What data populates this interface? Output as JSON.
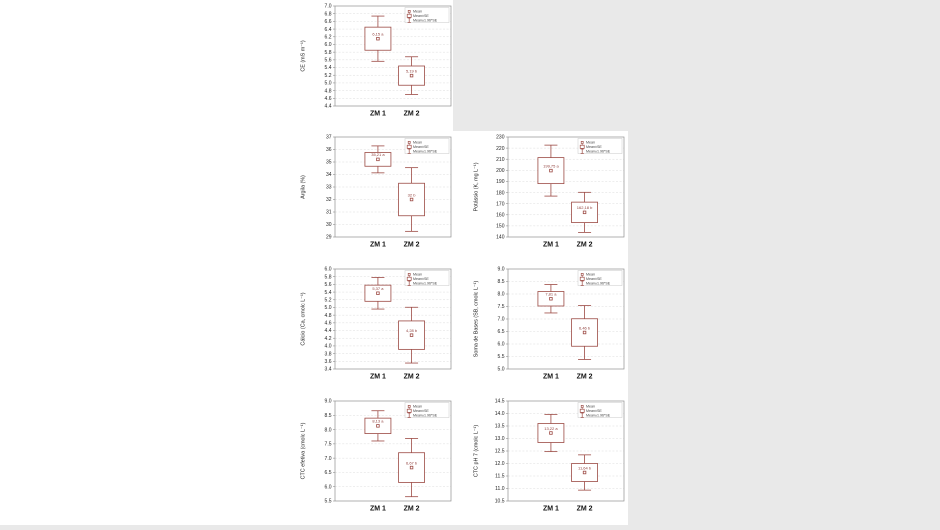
{
  "page": {
    "background": "#e9e9e9",
    "document_background": "#ffffff"
  },
  "style": {
    "box_color": "#9c4a44",
    "label_color": "#8f3e3a",
    "grid_color": "#dcdcdc",
    "axis_color": "#8f8f8f",
    "text_color": "#222222",
    "legend_border": "#c8c8c8",
    "legend_text": "#444444"
  },
  "legend": {
    "items": [
      {
        "label": "Mean",
        "marker": "mean-square"
      },
      {
        "label": "Mean±SE",
        "marker": "se-box"
      },
      {
        "label": "Mean±1.96*SE",
        "marker": "whisker"
      }
    ],
    "position": "top-right"
  },
  "chart_data": [
    {
      "id": "ce",
      "type": "box",
      "title": "",
      "xlabel": "",
      "ylabel": "CE (mS m⁻¹)",
      "ylim": [
        4.4,
        7.0
      ],
      "ystep": 0.2,
      "ydecimals": 1,
      "grid": true,
      "whisker_factor": 1.96,
      "categories": [
        "ZM 1",
        "ZM 2"
      ],
      "groups": [
        {
          "category": "ZM 1",
          "mean": 6.15,
          "se": 0.3,
          "label": "6,15 a"
        },
        {
          "category": "ZM 2",
          "mean": 5.19,
          "se": 0.25,
          "label": "5,19 b"
        }
      ]
    },
    {
      "id": "argila",
      "type": "box",
      "title": "",
      "xlabel": "",
      "ylabel": "Argila (%)",
      "ylim": [
        29,
        37
      ],
      "ystep": 1,
      "ydecimals": 0,
      "grid": true,
      "whisker_factor": 1.96,
      "categories": [
        "ZM 1",
        "ZM 2"
      ],
      "groups": [
        {
          "category": "ZM 1",
          "mean": 35.21,
          "se": 0.55,
          "label": "35,21 a"
        },
        {
          "category": "ZM 2",
          "mean": 32.0,
          "se": 1.3,
          "label": "32 b"
        }
      ]
    },
    {
      "id": "potassio",
      "type": "box",
      "title": "",
      "xlabel": "",
      "ylabel": "Potássio (K, mg L⁻¹)",
      "ylim": [
        140,
        230
      ],
      "ystep": 10,
      "ydecimals": 0,
      "grid": true,
      "whisker_factor": 1.96,
      "categories": [
        "ZM 1",
        "ZM 2"
      ],
      "groups": [
        {
          "category": "ZM 1",
          "mean": 199.75,
          "se": 11.7,
          "label": "199,75 a"
        },
        {
          "category": "ZM 2",
          "mean": 162.18,
          "se": 9.2,
          "label": "162,18 b"
        }
      ]
    },
    {
      "id": "calcio",
      "type": "box",
      "title": "",
      "xlabel": "",
      "ylabel": "Cálcio (Ca, cmolc L⁻¹)",
      "ylim": [
        3.4,
        6.0
      ],
      "ystep": 0.2,
      "ydecimals": 1,
      "grid": true,
      "whisker_factor": 1.96,
      "categories": [
        "ZM 1",
        "ZM 2"
      ],
      "groups": [
        {
          "category": "ZM 1",
          "mean": 5.37,
          "se": 0.21,
          "label": "5,37 a"
        },
        {
          "category": "ZM 2",
          "mean": 4.28,
          "se": 0.37,
          "label": "4,28 b"
        }
      ]
    },
    {
      "id": "soma-de-bases",
      "type": "box",
      "title": "",
      "xlabel": "",
      "ylabel": "Soma de Bases (SB, cmolc L⁻¹)",
      "ylim": [
        5.0,
        9.0
      ],
      "ystep": 0.5,
      "ydecimals": 1,
      "grid": true,
      "whisker_factor": 1.96,
      "categories": [
        "ZM 1",
        "ZM 2"
      ],
      "groups": [
        {
          "category": "ZM 1",
          "mean": 7.81,
          "se": 0.29,
          "label": "7,81 a"
        },
        {
          "category": "ZM 2",
          "mean": 6.46,
          "se": 0.55,
          "label": "6,46 b"
        }
      ]
    },
    {
      "id": "ctc-efetiva",
      "type": "box",
      "title": "",
      "xlabel": "",
      "ylabel": "CTC efetiva (cmolc L⁻¹)",
      "ylim": [
        5.5,
        9.0
      ],
      "ystep": 0.5,
      "ydecimals": 1,
      "grid": true,
      "whisker_factor": 1.96,
      "categories": [
        "ZM 1",
        "ZM 2"
      ],
      "groups": [
        {
          "category": "ZM 1",
          "mean": 8.13,
          "se": 0.27,
          "label": "8,13 a"
        },
        {
          "category": "ZM 2",
          "mean": 6.67,
          "se": 0.52,
          "label": "6,67 b"
        }
      ]
    },
    {
      "id": "ctc-ph7",
      "type": "box",
      "title": "",
      "xlabel": "",
      "ylabel": "CTC pH 7 (cmolc L⁻¹)",
      "ylim": [
        10.5,
        14.5
      ],
      "ystep": 0.5,
      "ydecimals": 1,
      "grid": true,
      "whisker_factor": 1.96,
      "categories": [
        "ZM 1",
        "ZM 2"
      ],
      "groups": [
        {
          "category": "ZM 1",
          "mean": 13.22,
          "se": 0.38,
          "label": "13,22 a"
        },
        {
          "category": "ZM 2",
          "mean": 11.64,
          "se": 0.36,
          "label": "11,64 b"
        }
      ]
    }
  ]
}
